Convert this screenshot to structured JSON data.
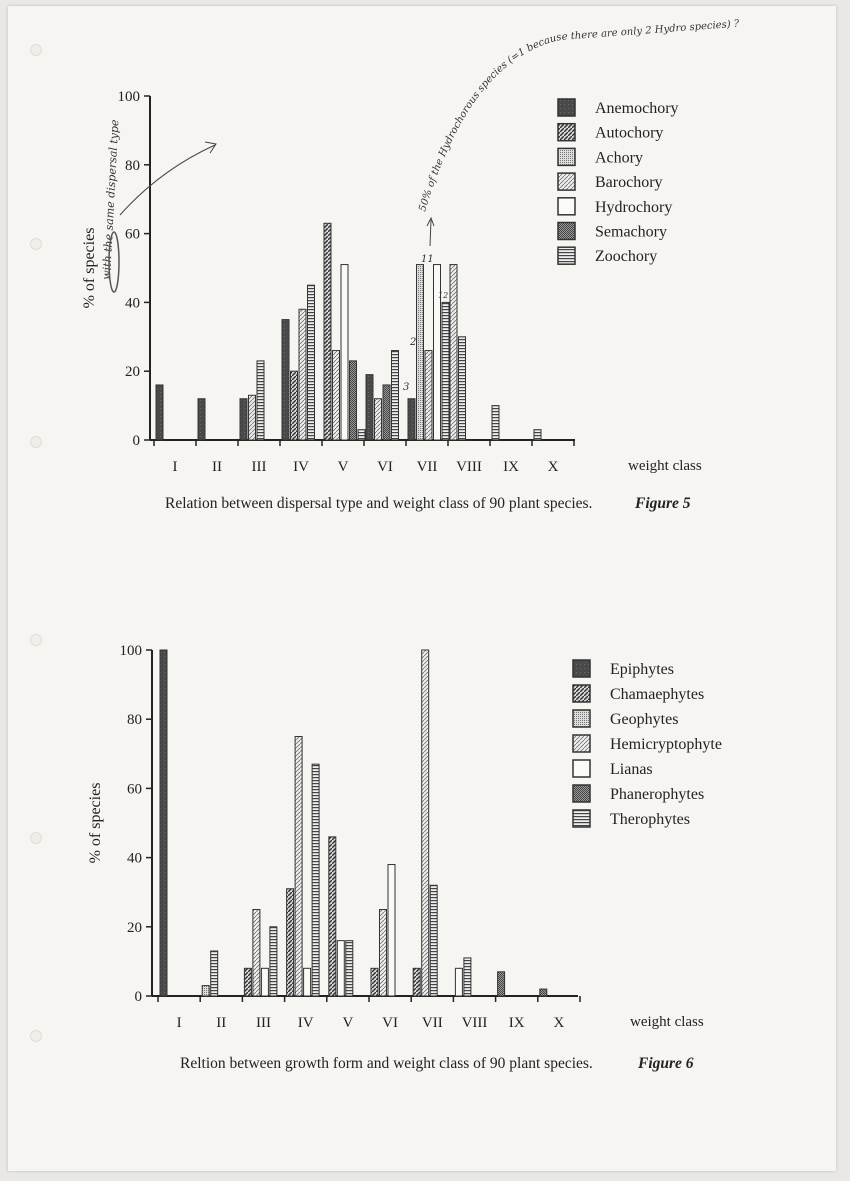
{
  "chart_data": [
    {
      "type": "bar",
      "ylabel": "% of species",
      "xlabel": "weight class",
      "ylim": [
        0,
        100
      ],
      "yticks": [
        "0",
        "20",
        "40",
        "60",
        "80",
        "100"
      ],
      "categories": [
        "I",
        "II",
        "III",
        "IV",
        "V",
        "VI",
        "VII",
        "VIII",
        "IX",
        "X"
      ],
      "caption": "Relation between dispersal type and weight class of 90 plant species.",
      "figure_label": "Figure 5",
      "legend_position": "top-right",
      "series": [
        {
          "name": "Anemochory",
          "fill": "solid-dark",
          "values": [
            16,
            12,
            12,
            35,
            0,
            19,
            12,
            0,
            0,
            0
          ]
        },
        {
          "name": "Autochory",
          "fill": "hatch-dark",
          "values": [
            0,
            0,
            0,
            20,
            63,
            0,
            0,
            0,
            0,
            0
          ]
        },
        {
          "name": "Achory",
          "fill": "dots",
          "values": [
            0,
            0,
            0,
            0,
            0,
            0,
            51,
            0,
            0,
            0
          ]
        },
        {
          "name": "Barochory",
          "fill": "hatch-light",
          "values": [
            0,
            0,
            13,
            38,
            26,
            12,
            26,
            51,
            0,
            0
          ]
        },
        {
          "name": "Hydrochory",
          "fill": "white",
          "values": [
            0,
            0,
            0,
            0,
            51,
            0,
            51,
            0,
            0,
            0
          ]
        },
        {
          "name": "Semachory",
          "fill": "checker",
          "values": [
            0,
            0,
            0,
            0,
            23,
            16,
            0,
            0,
            0,
            0
          ]
        },
        {
          "name": "Zoochory",
          "fill": "horizontal-lines",
          "values": [
            0,
            0,
            23,
            45,
            3,
            26,
            40,
            30,
            10,
            3
          ]
        }
      ],
      "handwritten_notes": [
        "with the same dispersal type",
        "50% of the Hydrochorous species (=1 because there are only 2 Hydro species) ?",
        "2",
        "3",
        "11",
        "12"
      ]
    },
    {
      "type": "bar",
      "ylabel": "% of species",
      "xlabel": "weight class",
      "ylim": [
        0,
        100
      ],
      "yticks": [
        "0",
        "20",
        "40",
        "60",
        "80",
        "100"
      ],
      "categories": [
        "I",
        "II",
        "III",
        "IV",
        "V",
        "VI",
        "VII",
        "VIII",
        "IX",
        "X"
      ],
      "caption": "Reltion between growth form and weight class of 90 plant species.",
      "figure_label": "Figure 6",
      "legend_position": "top-right",
      "series": [
        {
          "name": "Epiphytes",
          "fill": "solid-dark",
          "values": [
            100,
            0,
            0,
            0,
            0,
            0,
            0,
            0,
            0,
            0
          ]
        },
        {
          "name": "Chamaephytes",
          "fill": "hatch-dark",
          "values": [
            0,
            0,
            8,
            31,
            46,
            8,
            8,
            0,
            0,
            0
          ]
        },
        {
          "name": "Geophytes",
          "fill": "dots",
          "values": [
            0,
            3,
            0,
            0,
            0,
            0,
            0,
            0,
            0,
            0
          ]
        },
        {
          "name": "Hemicryptophyte",
          "fill": "hatch-light",
          "values": [
            0,
            0,
            25,
            75,
            0,
            25,
            100,
            0,
            0,
            0
          ]
        },
        {
          "name": "Lianas",
          "fill": "white",
          "values": [
            0,
            0,
            8,
            8,
            16,
            38,
            0,
            8,
            0,
            0
          ]
        },
        {
          "name": "Phanerophytes",
          "fill": "checker",
          "values": [
            0,
            0,
            0,
            0,
            0,
            0,
            0,
            0,
            7,
            2
          ]
        },
        {
          "name": "Therophytes",
          "fill": "horizontal-lines",
          "values": [
            0,
            13,
            20,
            67,
            16,
            0,
            32,
            11,
            0,
            0
          ]
        }
      ]
    }
  ]
}
